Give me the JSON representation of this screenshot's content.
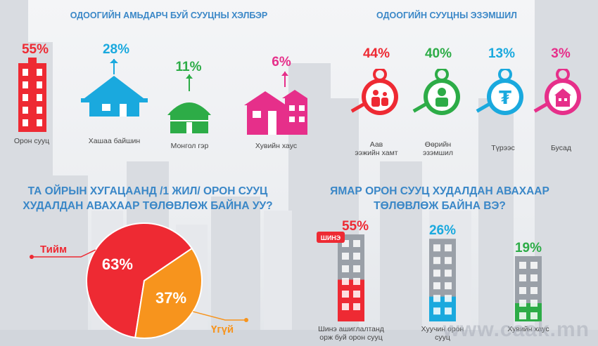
{
  "section1": {
    "title": "ОДООГИЙН АМЬДАРЧ БУЙ СУУЦНЫ ХЭЛБЭР",
    "items": [
      {
        "value": "55%",
        "label": "Орон сууц",
        "icon": "apartment-icon",
        "color": "#ee2a33"
      },
      {
        "value": "28%",
        "label": "Хашаа байшин",
        "icon": "house-icon",
        "color": "#1aa9de"
      },
      {
        "value": "11%",
        "label": "Монгол гэр",
        "icon": "ger-icon",
        "color": "#2dac47"
      },
      {
        "value": "6%",
        "label": "Хувийн хаус",
        "icon": "private-house-icon",
        "color": "#e62f8a"
      }
    ]
  },
  "section2": {
    "title": "ОДООГИЙН СУУЦНЫ ЭЗЭМШИЛ",
    "items": [
      {
        "value": "44%",
        "label_lines": [
          "Аав",
          "ээжийн хамт"
        ],
        "icon": "family-key-icon",
        "color": "#ee2a33"
      },
      {
        "value": "40%",
        "label_lines": [
          "Өөрийн",
          "эзэмшил"
        ],
        "icon": "person-key-icon",
        "color": "#2dac47"
      },
      {
        "value": "13%",
        "label_lines": [
          "Түрээс"
        ],
        "icon": "tugrik-key-icon",
        "color": "#1aa9de"
      },
      {
        "value": "3%",
        "label_lines": [
          "Бусад"
        ],
        "icon": "building-key-icon",
        "color": "#e62f8a"
      }
    ]
  },
  "section3": {
    "title_lines": [
      "ТА ОЙРЫН ХУГАЦААНД /1 ЖИЛ/ ОРОН СУУЦ",
      "ХУДАЛДАН АВАХААР ТӨЛӨВЛӨЖ БАЙНА УУ?"
    ]
  },
  "section4": {
    "title_lines": [
      "ЯМАР ОРОН СУУЦ ХУДАЛДАН АВАХААР",
      "ТӨЛӨВЛӨЖ БАЙНА ВЭ?"
    ],
    "badge": "ШИНЭ",
    "items": [
      {
        "value": "55%",
        "label_lines": [
          "Шинэ ашиглалтанд",
          "орж буй орон сууц"
        ],
        "color": "#ee2a33"
      },
      {
        "value": "26%",
        "label_lines": [
          "Хуучин орон",
          "сууц"
        ],
        "color": "#1aa9de"
      },
      {
        "value": "19%",
        "label_lines": [
          "Хувийн хаус"
        ],
        "color": "#2dac47"
      }
    ]
  },
  "watermark": "www.caak.mn",
  "chart_data": [
    {
      "type": "pie",
      "title": "ТА ОЙРЫН ХУГАЦААНД /1 ЖИЛ/ ОРОН СУУЦ ХУДАЛДАН АВАХААР ТӨЛӨВЛӨЖ БАЙНА УУ?",
      "slices": [
        {
          "label": "Тийм",
          "value": 63,
          "value_label": "63%",
          "color": "#ee2a33"
        },
        {
          "label": "Үгүй",
          "value": 37,
          "value_label": "37%",
          "color": "#f7941d"
        }
      ]
    },
    {
      "type": "bar",
      "title": "ЯМАР ОРОН СУУЦ ХУДАЛДАН АВАХААР ТӨЛӨВЛӨЖ БАЙНА ВЭ?",
      "categories": [
        "Шинэ ашиглалтанд орж буй орон сууц",
        "Хуучин орон сууц",
        "Хувийн хаус"
      ],
      "values": [
        55,
        26,
        19
      ]
    }
  ]
}
